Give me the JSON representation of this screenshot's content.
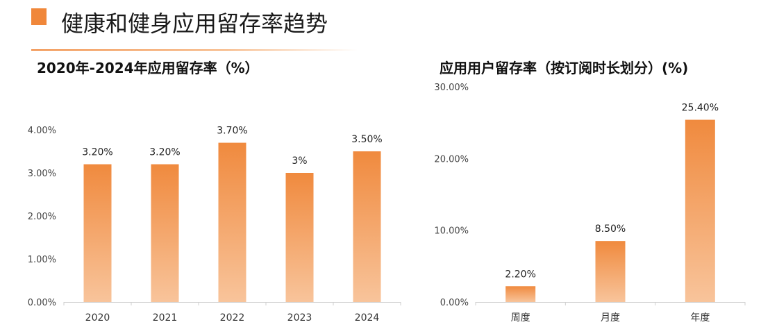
{
  "page": {
    "title": "健康和健身应用留存率趋势"
  },
  "colors": {
    "accent": "#f0873a",
    "bar_top": "#f08a3e",
    "bar_bottom": "#f8c49b"
  },
  "chart_data": [
    {
      "type": "bar",
      "title": "2020年-2024年应用留存率（%）",
      "categories": [
        "2020",
        "2021",
        "2022",
        "2023",
        "2024"
      ],
      "values": [
        3.2,
        3.2,
        3.7,
        3.0,
        3.5
      ],
      "data_labels": [
        "3.20%",
        "3.20%",
        "3.70%",
        "3%",
        "3.50%"
      ],
      "ylim": [
        0,
        4
      ],
      "yticks": [
        0,
        1,
        2,
        3,
        4
      ],
      "ytick_labels": [
        "0.00%",
        "1.00%",
        "2.00%",
        "3.00%",
        "4.00%"
      ],
      "xlabel": "",
      "ylabel": "",
      "grid": false,
      "legend": "none"
    },
    {
      "type": "bar",
      "title": "应用用户留存率（按订阅时长划分）(%)",
      "categories": [
        "周度",
        "月度",
        "年度"
      ],
      "values": [
        2.2,
        8.5,
        25.4
      ],
      "data_labels": [
        "2.20%",
        "8.50%",
        "25.40%"
      ],
      "ylim": [
        0,
        30
      ],
      "yticks": [
        0,
        10,
        20,
        30
      ],
      "ytick_labels": [
        "0.00%",
        "10.00%",
        "20.00%",
        "30.00%"
      ],
      "xlabel": "",
      "ylabel": "",
      "grid": false,
      "legend": "none"
    }
  ]
}
